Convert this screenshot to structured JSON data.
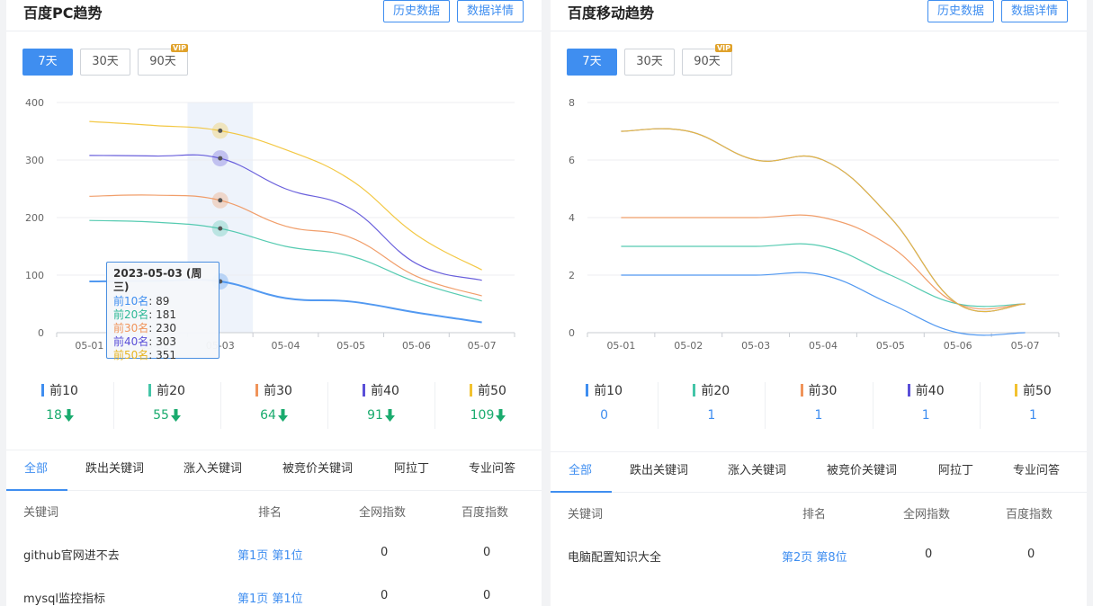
{
  "pc": {
    "title": "百度PC趋势",
    "btn_history": "历史数据",
    "btn_detail": "数据详情",
    "ranges": [
      "7天",
      "30天",
      "90天"
    ],
    "vip_badge": "VIP",
    "stats": [
      {
        "label": "前10",
        "value": "18",
        "color": "#3f8ef0"
      },
      {
        "label": "前20",
        "value": "55",
        "color": "#44c5a8"
      },
      {
        "label": "前30",
        "value": "64",
        "color": "#f0945a"
      },
      {
        "label": "前40",
        "value": "91",
        "color": "#5a4fd8"
      },
      {
        "label": "前50",
        "value": "109",
        "color": "#f2c230"
      }
    ],
    "stat_value_color": "#1aab6e",
    "tabs": [
      "全部",
      "跌出关键词",
      "涨入关键词",
      "被竞价关键词",
      "阿拉丁",
      "专业问答"
    ],
    "table": {
      "headers": [
        "关键词",
        "排名",
        "全网指数",
        "百度指数"
      ],
      "rows": [
        [
          "github官网进不去",
          "第1页 第1位",
          "0",
          "0"
        ],
        [
          "mysql监控指标",
          "第1页 第1位",
          "0",
          "0"
        ]
      ]
    },
    "tooltip": {
      "title": "2023-05-03 (周三)",
      "items": [
        {
          "label": "前10名",
          "value": "89"
        },
        {
          "label": "前20名",
          "value": "181"
        },
        {
          "label": "前30名",
          "value": "230"
        },
        {
          "label": "前40名",
          "value": "303"
        },
        {
          "label": "前50名",
          "value": "351"
        }
      ]
    }
  },
  "mobile": {
    "title": "百度移动趋势",
    "btn_history": "历史数据",
    "btn_detail": "数据详情",
    "ranges": [
      "7天",
      "30天",
      "90天"
    ],
    "vip_badge": "VIP",
    "stats": [
      {
        "label": "前10",
        "value": "0",
        "color": "#3f8ef0"
      },
      {
        "label": "前20",
        "value": "1",
        "color": "#44c5a8"
      },
      {
        "label": "前30",
        "value": "1",
        "color": "#f0945a"
      },
      {
        "label": "前40",
        "value": "1",
        "color": "#5a4fd8"
      },
      {
        "label": "前50",
        "value": "1",
        "color": "#f2c230"
      }
    ],
    "stat_value_color": "#3f8ef0",
    "tabs": [
      "全部",
      "跌出关键词",
      "涨入关键词",
      "被竞价关键词",
      "阿拉丁",
      "专业问答"
    ],
    "table": {
      "headers": [
        "关键词",
        "排名",
        "全网指数",
        "百度指数"
      ],
      "rows": [
        [
          "电脑配置知识大全",
          "第2页 第8位",
          "0",
          "0"
        ]
      ]
    }
  },
  "chart_data": [
    {
      "type": "line",
      "x": [
        "05-01",
        "05-02",
        "05-03",
        "05-04",
        "05-05",
        "05-06",
        "05-07"
      ],
      "y_ticks": [
        "0",
        "100",
        "200",
        "300",
        "400"
      ],
      "ylim": [
        0,
        400
      ],
      "highlight_index": 2,
      "series": [
        {
          "name": "前10",
          "color": "#3f8ef0",
          "values": [
            89,
            90,
            89,
            60,
            54,
            35,
            18
          ]
        },
        {
          "name": "前20",
          "color": "#44c5a8",
          "values": [
            195,
            192,
            181,
            150,
            133,
            88,
            55
          ]
        },
        {
          "name": "前30",
          "color": "#f0945a",
          "values": [
            237,
            239,
            230,
            185,
            165,
            98,
            64
          ]
        },
        {
          "name": "前40",
          "color": "#5a4fd8",
          "values": [
            308,
            307,
            303,
            250,
            215,
            120,
            91
          ]
        },
        {
          "name": "前50",
          "color": "#f2c230",
          "values": [
            367,
            360,
            351,
            318,
            265,
            170,
            109
          ]
        }
      ]
    },
    {
      "type": "line",
      "x": [
        "05-01",
        "05-02",
        "05-03",
        "05-04",
        "05-05",
        "05-06",
        "05-07"
      ],
      "y_ticks": [
        "0",
        "2",
        "4",
        "6",
        "8"
      ],
      "ylim": [
        0,
        8
      ],
      "series": [
        {
          "name": "前10",
          "color": "#3f8ef0",
          "values": [
            2,
            2,
            2,
            2,
            1,
            0,
            0
          ]
        },
        {
          "name": "前20",
          "color": "#44c5a8",
          "values": [
            3,
            3,
            3,
            3,
            2,
            1,
            1
          ]
        },
        {
          "name": "前30",
          "color": "#f0945a",
          "values": [
            4,
            4,
            4,
            4,
            3,
            1,
            1
          ]
        },
        {
          "name": "前40",
          "color": "#5a4fd8",
          "values": [
            7,
            7,
            6,
            6,
            4,
            1,
            1
          ]
        },
        {
          "name": "前50",
          "color": "#f2c230",
          "values": [
            7,
            7,
            6,
            6,
            4,
            1,
            1
          ]
        }
      ]
    }
  ]
}
